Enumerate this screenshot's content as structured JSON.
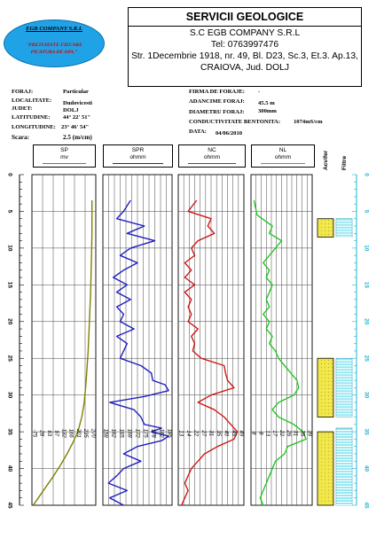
{
  "company_badge": {
    "name": "EGB COMPANY S.R.L",
    "slogan_line1": "\"PRETUIESTE FIECARE",
    "slogan_line2": "PICATURA DE APA.\""
  },
  "header": {
    "title": "SERVICII GEOLOGICE",
    "line1": "S.C  EGB COMPANY S.R.L",
    "line2": "Tel: 0763997476",
    "line3": "Str. 1Decembrie 1918, nr. 49, Bl. D23, Sc.3, Et.3. Ap.13,",
    "line4": "CRAIOVA, Jud. DOLJ"
  },
  "well_info": {
    "foraj_label": "FORAJ:",
    "foraj_value": "Particular",
    "localitate_label": "LOCALITATE:",
    "localitate_value": "Dudovicesti",
    "judet_label": "JUDET:",
    "judet_value": "DOLJ",
    "latitudine_label": "LATITUDINE:",
    "latitudine_value": "44° 22' 51\"",
    "longitudine_label": "LONGITUDINE:",
    "longitudine_value": "23° 46' 54\"",
    "scara_label": "Scara:",
    "scara_value": "2.5 (m/cm)",
    "firma_label": "FIRMA DE FORAJE:",
    "firma_value": "-",
    "adancime_label": "ADANCIME FORAJ:",
    "adancime_value": "45.5 m",
    "diametru_label": "DIAMETRU FORAJ:",
    "diametru_value": "300mm",
    "conductivitate_label": "CONDUCTIVITATE BENTONITA:",
    "conductivitate_value": "1074mS/cm",
    "data_label": "DATA:",
    "data_value": "04/06/2010"
  },
  "tracks": [
    {
      "name": "SP",
      "unit": "mv",
      "color": "#808000"
    },
    {
      "name": "SPR",
      "unit": "ohmm",
      "color": "#1f1fbf"
    },
    {
      "name": "NC",
      "unit": "ohmm",
      "color": "#d01818"
    },
    {
      "name": "NL",
      "unit": "ohmm",
      "color": "#22c722"
    }
  ],
  "column_labels": {
    "acvifer": "Acvifer",
    "filtre": "Filtre"
  },
  "colors": {
    "aquifer_fill": "#f2e84a",
    "filter_fill": "#9be8f2",
    "depth_axis": "#1ab3d4"
  },
  "chart_data": {
    "type": "line",
    "y_axis": {
      "label": "",
      "range": [
        0,
        45
      ],
      "ticks": [
        0,
        5,
        10,
        15,
        20,
        25,
        30,
        35,
        40,
        45
      ]
    },
    "curves": [
      {
        "name": "SP",
        "unit": "mv",
        "color": "#808000",
        "depth": [
          3.5,
          8,
          12,
          16,
          20,
          24,
          28,
          31,
          33,
          35,
          36.5,
          38,
          39.5,
          41,
          42.5,
          44,
          45
        ],
        "value": [
          0.94,
          0.94,
          0.93,
          0.92,
          0.9,
          0.88,
          0.85,
          0.82,
          0.78,
          0.72,
          0.64,
          0.55,
          0.45,
          0.34,
          0.22,
          0.1,
          0.02
        ]
      },
      {
        "name": "SPR",
        "unit": "ohmm",
        "color": "#1f1fbf",
        "depth": [
          3.5,
          5,
          6,
          7,
          8,
          9,
          10,
          11,
          12,
          13,
          14,
          15,
          16,
          17,
          18,
          19,
          20,
          21,
          22,
          23,
          24,
          25,
          26,
          27,
          28,
          28.6,
          29.4,
          30.2,
          31,
          32,
          33,
          34,
          34.5,
          35,
          35.6,
          36.2,
          37,
          38,
          39,
          40,
          41,
          42,
          43,
          44,
          45
        ],
        "value": [
          0.4,
          0.3,
          0.2,
          0.6,
          0.35,
          0.75,
          0.4,
          0.25,
          0.5,
          0.3,
          0.15,
          0.35,
          0.2,
          0.4,
          0.2,
          0.3,
          0.25,
          0.45,
          0.2,
          0.35,
          0.3,
          0.25,
          0.55,
          0.7,
          0.72,
          0.9,
          0.95,
          0.6,
          0.1,
          0.45,
          0.55,
          0.6,
          0.85,
          0.7,
          0.95,
          0.85,
          0.5,
          0.3,
          0.55,
          0.3,
          0.2,
          0.08,
          0.35,
          0.1,
          0.3
        ]
      },
      {
        "name": "NC",
        "unit": "ohmm",
        "color": "#d01818",
        "depth": [
          3.5,
          5,
          6,
          7,
          8,
          9,
          10,
          11,
          12,
          13,
          14,
          15,
          16,
          17,
          18,
          19,
          20,
          21,
          22,
          23,
          24,
          25,
          26,
          27,
          28,
          29,
          30,
          31,
          32,
          33,
          34,
          35,
          36,
          37,
          38,
          39,
          40,
          41,
          42,
          43,
          44,
          45
        ],
        "value": [
          0.28,
          0.15,
          0.5,
          0.45,
          0.55,
          0.3,
          0.2,
          0.25,
          0.1,
          0.2,
          0.1,
          0.25,
          0.1,
          0.2,
          0.15,
          0.2,
          0.15,
          0.3,
          0.2,
          0.25,
          0.22,
          0.35,
          0.7,
          0.72,
          0.75,
          0.85,
          0.5,
          0.3,
          0.55,
          0.7,
          0.8,
          0.9,
          0.85,
          0.6,
          0.4,
          0.3,
          0.2,
          0.15,
          0.1,
          0.15,
          0.1,
          0.05
        ]
      },
      {
        "name": "NL",
        "unit": "ohmm",
        "color": "#22c722",
        "depth": [
          3.5,
          5.5,
          7,
          8,
          9,
          10,
          11,
          12,
          13,
          14,
          15,
          16,
          17,
          18,
          19,
          20,
          21,
          22,
          23,
          24,
          25,
          26,
          27,
          28,
          29,
          30,
          31,
          32,
          33,
          34,
          35,
          36,
          37,
          38,
          39,
          40,
          41,
          42,
          43,
          44,
          45
        ],
        "value": [
          0.05,
          0.1,
          0.35,
          0.3,
          0.5,
          0.4,
          0.3,
          0.2,
          0.3,
          0.25,
          0.35,
          0.3,
          0.25,
          0.3,
          0.2,
          0.3,
          0.25,
          0.35,
          0.3,
          0.4,
          0.45,
          0.55,
          0.65,
          0.75,
          0.78,
          0.7,
          0.45,
          0.35,
          0.45,
          0.7,
          0.85,
          0.9,
          0.6,
          0.55,
          0.4,
          0.35,
          0.3,
          0.25,
          0.2,
          0.15,
          0.2
        ]
      }
    ],
    "tick_labels": {
      "SP": [
        "-75",
        "28",
        "63",
        "97",
        "132",
        "166",
        "201",
        "235",
        "270"
      ],
      "SPR": [
        "158",
        "162",
        "165",
        "168",
        "172",
        "175",
        "178",
        "182",
        "185"
      ],
      "NC": [
        "13",
        "14",
        "22",
        "27",
        "31",
        "35",
        "40",
        "45",
        "49"
      ],
      "NL": [
        "8",
        "8",
        "13",
        "17",
        "22",
        "26",
        "31",
        "35",
        "39"
      ]
    },
    "aquifers": [
      [
        6,
        8.5
      ],
      [
        25,
        33
      ],
      [
        35,
        45
      ]
    ],
    "filters": [
      [
        6,
        8.5
      ],
      [
        25,
        33
      ],
      [
        34.5,
        45
      ]
    ]
  }
}
